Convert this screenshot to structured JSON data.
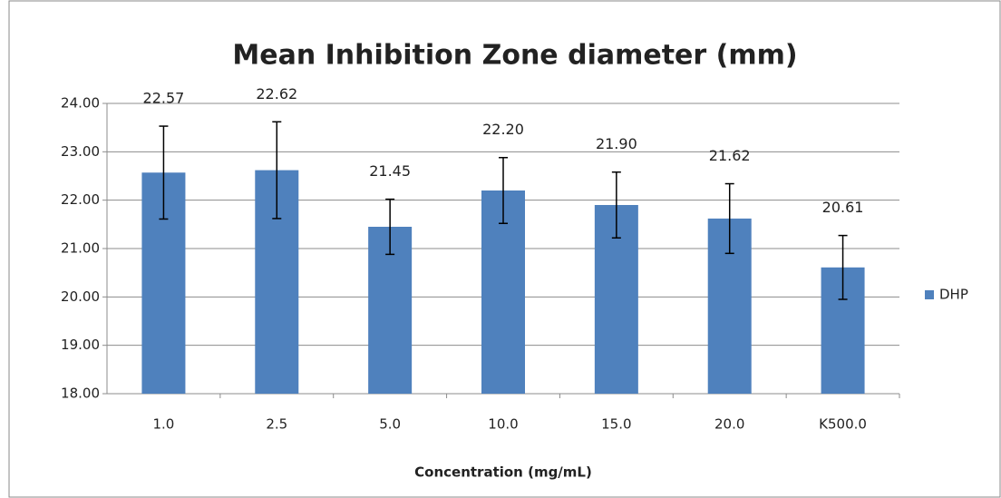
{
  "chart_data": {
    "type": "bar",
    "title": "Mean Inhibition Zone diameter (mm)",
    "x_label": "Concentration (mg/mL)",
    "categories": [
      "1.0",
      "2.5",
      "5.0",
      "10.0",
      "15.0",
      "20.0",
      "K500.0"
    ],
    "series": [
      {
        "name": "DHP",
        "color": "#4f81bd",
        "values": [
          22.57,
          22.62,
          21.45,
          22.2,
          21.9,
          21.62,
          20.61
        ],
        "value_labels": [
          "22.57",
          "22.62",
          "21.45",
          "22.20",
          "21.90",
          "21.62",
          "20.61"
        ],
        "errors": [
          0.96,
          1.0,
          0.57,
          0.68,
          0.68,
          0.72,
          0.66
        ]
      }
    ],
    "ylim": [
      18,
      24
    ],
    "yticks": [
      {
        "value": 18,
        "label": "18.00"
      },
      {
        "value": 19,
        "label": "19.00"
      },
      {
        "value": 20,
        "label": "20.00"
      },
      {
        "value": 21,
        "label": "21.00"
      },
      {
        "value": 22,
        "label": "22.00"
      },
      {
        "value": 23,
        "label": "23.00"
      },
      {
        "value": 24,
        "label": "24.00"
      }
    ],
    "grid": true,
    "legend": "right"
  }
}
